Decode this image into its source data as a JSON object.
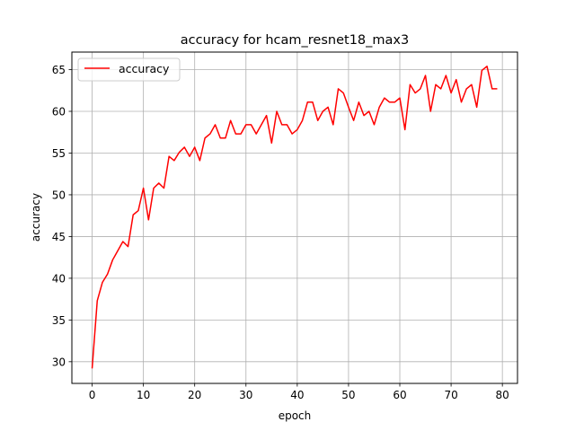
{
  "chart_data": {
    "type": "line",
    "title": "accuracy for hcam_resnet18_max3",
    "xlabel": "epoch",
    "ylabel": "accuracy",
    "xlim": [
      -3.95,
      82.95
    ],
    "ylim": [
      27.4,
      67.1
    ],
    "xticks": [
      0,
      10,
      20,
      30,
      40,
      50,
      60,
      70,
      80
    ],
    "yticks": [
      30,
      35,
      40,
      45,
      50,
      55,
      60,
      65
    ],
    "grid": true,
    "legend_position": "upper left",
    "series": [
      {
        "name": "accuracy",
        "color": "#ff0000",
        "x": [
          0,
          1,
          2,
          3,
          4,
          5,
          6,
          7,
          8,
          9,
          10,
          11,
          12,
          13,
          14,
          15,
          16,
          17,
          18,
          19,
          20,
          21,
          22,
          23,
          24,
          25,
          26,
          27,
          28,
          29,
          30,
          31,
          32,
          33,
          34,
          35,
          36,
          37,
          38,
          39,
          40,
          41,
          42,
          43,
          44,
          45,
          46,
          47,
          48,
          49,
          50,
          51,
          52,
          53,
          54,
          55,
          56,
          57,
          58,
          59,
          60,
          61,
          62,
          63,
          64,
          65,
          66,
          67,
          68,
          69,
          70,
          71,
          72,
          73,
          74,
          75,
          76,
          77,
          78,
          79
        ],
        "values": [
          29.2,
          37.3,
          39.5,
          40.5,
          42.2,
          43.3,
          44.4,
          43.8,
          47.6,
          48.1,
          50.8,
          47.0,
          50.8,
          51.4,
          50.8,
          54.6,
          54.1,
          55.1,
          55.7,
          54.6,
          55.7,
          54.1,
          56.8,
          57.3,
          58.4,
          56.8,
          56.8,
          58.9,
          57.3,
          57.3,
          58.4,
          58.4,
          57.3,
          58.4,
          59.5,
          56.2,
          60.0,
          58.4,
          58.4,
          57.3,
          57.8,
          58.9,
          61.1,
          61.1,
          58.9,
          60.0,
          60.5,
          58.4,
          62.7,
          62.2,
          60.5,
          58.9,
          61.1,
          59.5,
          60.0,
          58.4,
          60.5,
          61.6,
          61.1,
          61.1,
          61.6,
          57.8,
          63.2,
          62.2,
          62.7,
          64.3,
          60.0,
          63.2,
          62.7,
          64.3,
          62.2,
          63.8,
          61.1,
          62.7,
          63.2,
          60.5,
          64.9,
          65.4,
          62.7,
          62.7
        ]
      }
    ]
  }
}
